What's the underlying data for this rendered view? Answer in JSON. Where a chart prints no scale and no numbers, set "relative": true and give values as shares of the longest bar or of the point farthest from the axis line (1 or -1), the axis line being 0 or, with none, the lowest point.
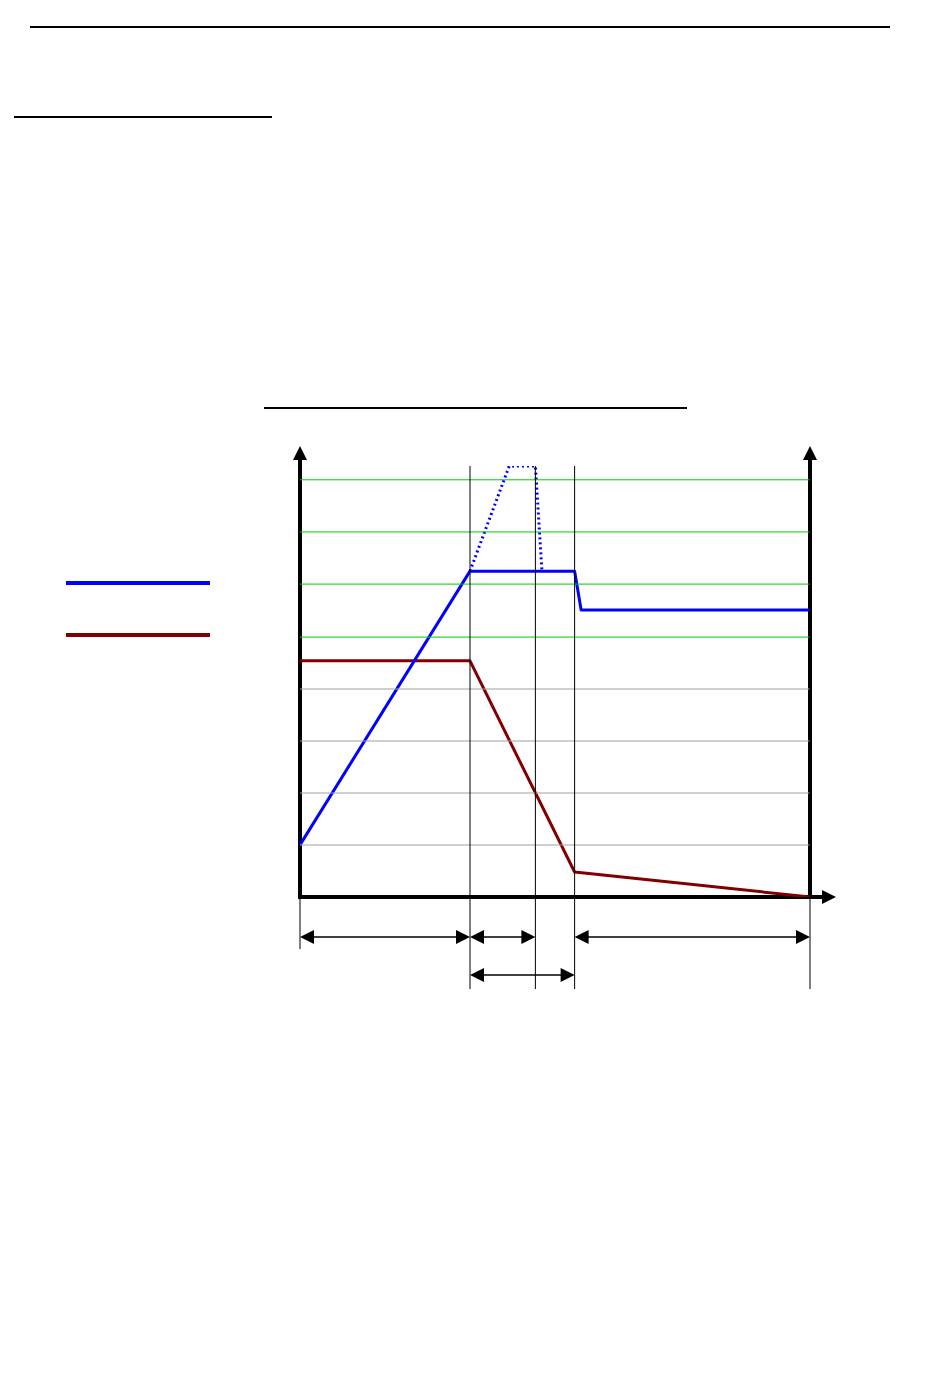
{
  "chart_data": {
    "type": "line",
    "relative": true,
    "grid": true,
    "ref_lines": [
      {
        "axis": "y",
        "value": 0.603,
        "color": "#00cc00"
      },
      {
        "axis": "y",
        "value": 0.726,
        "color": "#00cc00"
      },
      {
        "axis": "y",
        "value": 0.847,
        "color": "#00cc00"
      },
      {
        "axis": "y",
        "value": 0.968,
        "color": "#00cc00"
      }
    ],
    "categories": [
      null,
      null,
      null,
      null,
      null,
      null,
      null,
      null,
      null,
      null,
      null,
      null,
      null,
      null,
      null,
      null,
      null,
      null,
      null,
      null,
      null,
      null,
      null,
      null,
      null,
      null,
      null,
      null,
      null,
      null,
      null,
      null,
      null,
      null,
      null,
      null,
      null,
      null,
      null,
      null,
      null,
      null,
      null,
      null,
      null,
      null,
      null,
      null,
      null,
      null,
      null,
      null,
      null,
      null,
      null,
      null,
      null,
      null,
      null,
      null,
      null,
      null,
      null,
      null,
      null,
      null,
      null,
      null,
      null,
      null,
      null,
      null,
      null,
      null,
      null,
      null,
      null,
      null,
      null
    ],
    "series": [
      {
        "color": "#0000ff",
        "values": [
          0.121,
          null,
          null,
          null,
          null,
          null,
          null,
          null,
          null,
          null,
          null,
          null,
          null,
          null,
          null,
          null,
          null,
          null,
          null,
          null,
          null,
          null,
          null,
          null,
          null,
          null,
          0.756,
          null,
          null,
          null,
          null,
          null,
          null,
          null,
          null,
          null,
          null,
          null,
          null,
          null,
          null,
          null,
          0.756,
          0.666,
          null,
          null,
          null,
          null,
          null,
          null,
          null,
          null,
          null,
          null,
          null,
          null,
          null,
          null,
          null,
          null,
          null,
          null,
          null,
          null,
          null,
          null,
          null,
          null,
          null,
          null,
          null,
          null,
          null,
          null,
          null,
          null,
          null,
          null,
          0.666
        ]
      },
      {
        "color": "#0000ff",
        "line_style": "dotted",
        "values": [
          null,
          null,
          null,
          null,
          null,
          null,
          null,
          null,
          null,
          null,
          null,
          null,
          null,
          null,
          null,
          null,
          null,
          null,
          null,
          null,
          null,
          null,
          null,
          null,
          null,
          null,
          0.756,
          null,
          null,
          null,
          null,
          null,
          1,
          null,
          null,
          null,
          1,
          0.756,
          null,
          null,
          null,
          null,
          null,
          null,
          null,
          null,
          null,
          null,
          null,
          null,
          null,
          null,
          null,
          null,
          null,
          null,
          null,
          null,
          null,
          null,
          null,
          null,
          null,
          null,
          null,
          null,
          null,
          null,
          null,
          null,
          null,
          null,
          null,
          null,
          null,
          null,
          null,
          null,
          null
        ]
      },
      {
        "color": "#800000",
        "values": [
          0.548,
          null,
          null,
          null,
          null,
          null,
          null,
          null,
          null,
          null,
          null,
          null,
          null,
          null,
          null,
          null,
          null,
          null,
          null,
          null,
          null,
          null,
          null,
          null,
          null,
          null,
          0.548,
          null,
          null,
          null,
          null,
          null,
          null,
          null,
          null,
          null,
          null,
          null,
          null,
          null,
          null,
          null,
          0.058,
          null,
          null,
          null,
          null,
          null,
          null,
          null,
          null,
          null,
          null,
          null,
          null,
          null,
          null,
          null,
          null,
          null,
          null,
          null,
          null,
          null,
          null,
          null,
          null,
          null,
          null,
          null,
          null,
          null,
          null,
          null,
          null,
          null,
          null,
          null,
          0
        ]
      }
    ]
  }
}
